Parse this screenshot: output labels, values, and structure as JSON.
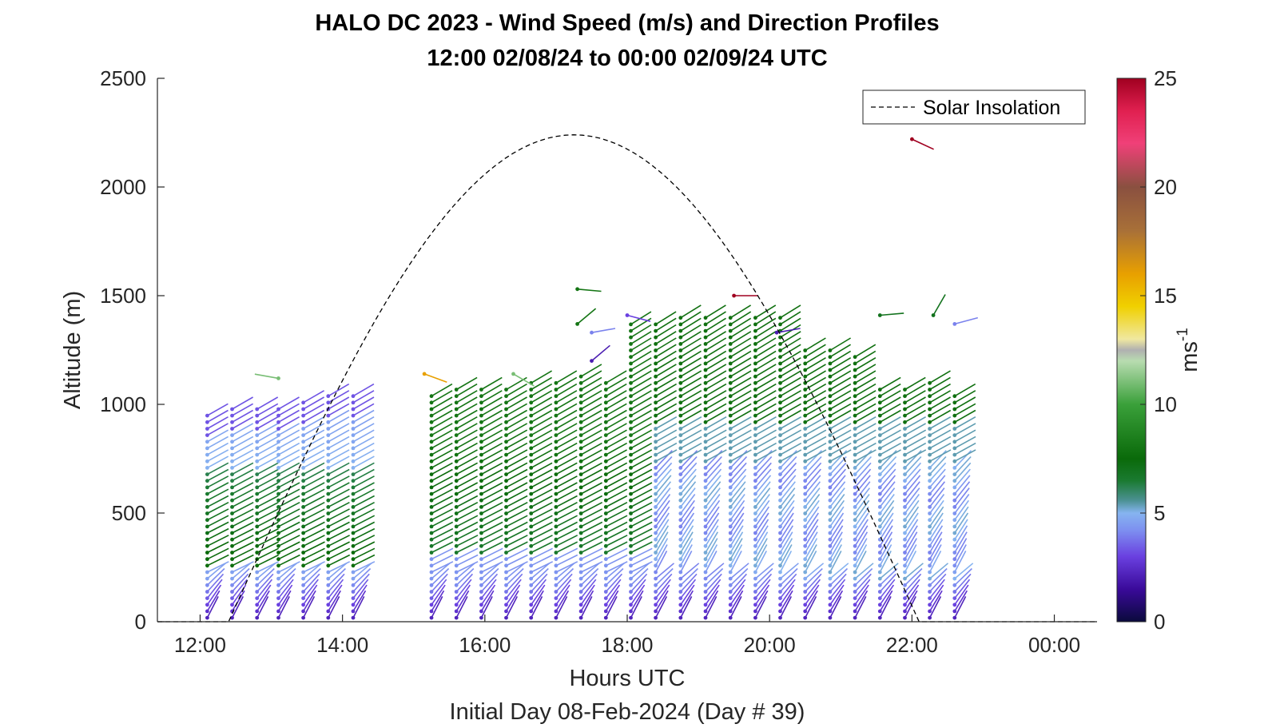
{
  "chart_data": {
    "type": "quiver",
    "title": "HALO DC 2023 - Wind Speed (m/s) and Direction Profiles",
    "subtitle": "12:00 02/08/24 to 00:00 02/09/24  UTC",
    "xlabel": "Hours UTC",
    "ylabel": "Altitude (m)",
    "note": "Initial Day 08-Feb-2024 (Day # 39)",
    "xlim_hours": [
      11.4,
      24.6
    ],
    "ylim": [
      0,
      2500
    ],
    "x_ticks": [
      {
        "value": 12,
        "label": "12:00"
      },
      {
        "value": 14,
        "label": "14:00"
      },
      {
        "value": 16,
        "label": "16:00"
      },
      {
        "value": 18,
        "label": "18:00"
      },
      {
        "value": 20,
        "label": "20:00"
      },
      {
        "value": 22,
        "label": "22:00"
      },
      {
        "value": 24,
        "label": "00:00"
      }
    ],
    "y_ticks": [
      {
        "value": 0,
        "label": "0"
      },
      {
        "value": 500,
        "label": "500"
      },
      {
        "value": 1000,
        "label": "1000"
      },
      {
        "value": 1500,
        "label": "1500"
      },
      {
        "value": 2000,
        "label": "2000"
      },
      {
        "value": 2500,
        "label": "2500"
      }
    ],
    "legend": {
      "entries": [
        {
          "label": "Solar Insolation",
          "style": "dashed",
          "color": "#000000"
        }
      ],
      "placement": "top-right"
    },
    "colorbar": {
      "label": "ms",
      "label_exponent": "-1",
      "range": [
        0,
        25
      ],
      "ticks": [
        {
          "value": 0,
          "label": "0"
        },
        {
          "value": 5,
          "label": "5"
        },
        {
          "value": 10,
          "label": "10"
        },
        {
          "value": 15,
          "label": "15"
        },
        {
          "value": 20,
          "label": "20"
        },
        {
          "value": 25,
          "label": "25"
        }
      ],
      "stops": [
        {
          "v": 0,
          "color": "#0a0a3c"
        },
        {
          "v": 1.5,
          "color": "#3a0a9a"
        },
        {
          "v": 3,
          "color": "#6a40e0"
        },
        {
          "v": 4.2,
          "color": "#7d8ff0"
        },
        {
          "v": 5,
          "color": "#86b4f0"
        },
        {
          "v": 5.6,
          "color": "#4a9090"
        },
        {
          "v": 6.5,
          "color": "#1a7a30"
        },
        {
          "v": 7.5,
          "color": "#0a6a0a"
        },
        {
          "v": 10,
          "color": "#3aa03a"
        },
        {
          "v": 12,
          "color": "#b8dcb0"
        },
        {
          "v": 12.5,
          "color": "#b0b0b0"
        },
        {
          "v": 13,
          "color": "#f0e8a0"
        },
        {
          "v": 14.5,
          "color": "#f0d000"
        },
        {
          "v": 16,
          "color": "#e8a000"
        },
        {
          "v": 18,
          "color": "#a87038"
        },
        {
          "v": 20,
          "color": "#8a5040"
        },
        {
          "v": 22,
          "color": "#f04078"
        },
        {
          "v": 23.5,
          "color": "#e02050"
        },
        {
          "v": 25,
          "color": "#a00020"
        }
      ]
    },
    "solar_insolation": {
      "rise_hour": 12.4,
      "set_hour": 22.1,
      "peak_altitude": 2240,
      "peak_hour": 17.3
    },
    "profile_times_hours": [
      12.1,
      12.45,
      12.8,
      13.1,
      13.45,
      13.8,
      14.15,
      15.25,
      15.6,
      15.95,
      16.3,
      16.65,
      17.0,
      17.35,
      17.7,
      18.05,
      18.4,
      18.75,
      19.1,
      19.45,
      19.8,
      20.15,
      20.5,
      20.85,
      21.2,
      21.55,
      21.9,
      22.25,
      22.6
    ],
    "profile_top_altitudes": [
      950,
      990,
      1000,
      1000,
      1030,
      1040,
      1040,
      1050,
      1080,
      1090,
      1090,
      1100,
      1110,
      1140,
      1120,
      1390,
      1390,
      1400,
      1400,
      1410,
      1410,
      1420,
      1250,
      1260,
      1230,
      1080,
      1070,
      1100,
      1040
    ],
    "isolated_vectors": [
      {
        "hour": 13.1,
        "alt": 1120,
        "speed": 11,
        "dir_deg": 100
      },
      {
        "hour": 15.15,
        "alt": 1140,
        "speed": 16,
        "dir_deg": 290
      },
      {
        "hour": 16.4,
        "alt": 1140,
        "speed": 11,
        "dir_deg": 300
      },
      {
        "hour": 17.3,
        "alt": 1530,
        "speed": 8,
        "dir_deg": 275
      },
      {
        "hour": 17.3,
        "alt": 1370,
        "speed": 8,
        "dir_deg": 230
      },
      {
        "hour": 17.5,
        "alt": 1330,
        "speed": 4,
        "dir_deg": 260
      },
      {
        "hour": 17.5,
        "alt": 1200,
        "speed": 2,
        "dir_deg": 230
      },
      {
        "hour": 18.0,
        "alt": 1410,
        "speed": 3,
        "dir_deg": 285
      },
      {
        "hour": 19.5,
        "alt": 1500,
        "speed": 25,
        "dir_deg": 270
      },
      {
        "hour": 20.1,
        "alt": 1330,
        "speed": 2,
        "dir_deg": 260
      },
      {
        "hour": 22.0,
        "alt": 2220,
        "speed": 25,
        "dir_deg": 295
      },
      {
        "hour": 21.55,
        "alt": 1410,
        "speed": 7,
        "dir_deg": 265
      },
      {
        "hour": 22.3,
        "alt": 1410,
        "speed": 7,
        "dir_deg": 210
      },
      {
        "hour": 22.6,
        "alt": 1370,
        "speed": 4,
        "dir_deg": 255
      }
    ]
  }
}
